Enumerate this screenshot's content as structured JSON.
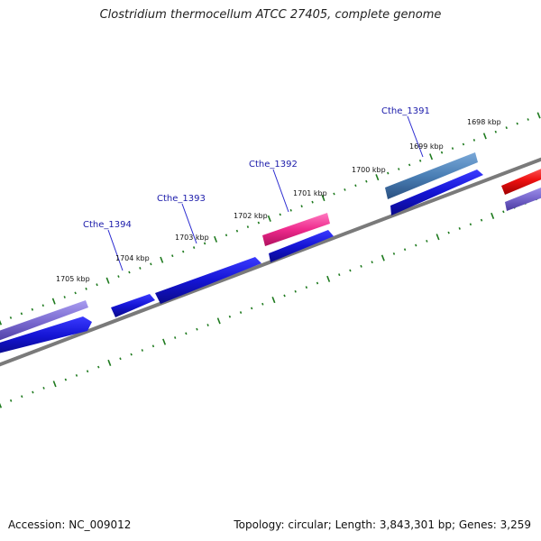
{
  "title": "Clostridium thermocellum ATCC 27405, complete genome",
  "footer": {
    "accession": "Accession: NC_009012",
    "summary": "Topology: circular; Length: 3,843,301 bp; Genes: 3,259"
  },
  "kbp_labels": [
    "1698 kbp",
    "1699 kbp",
    "1700 kbp",
    "1701 kbp",
    "1702 kbp",
    "1703 kbp",
    "1704 kbp",
    "1705 kbp"
  ],
  "gene_labels": [
    "Cthe_1391",
    "Cthe_1392",
    "Cthe_1393",
    "Cthe_1394"
  ],
  "colors": {
    "backbone": "#7a7a7a",
    "tick": "#1e7a1e",
    "cds": "#1414d4",
    "gene_purple": "#7a6ad0",
    "gene_pink": "#ee2a8c",
    "gene_steel": "#4a7fb5",
    "gene_red": "#ee1111",
    "label_line": "#2a2ad0"
  }
}
